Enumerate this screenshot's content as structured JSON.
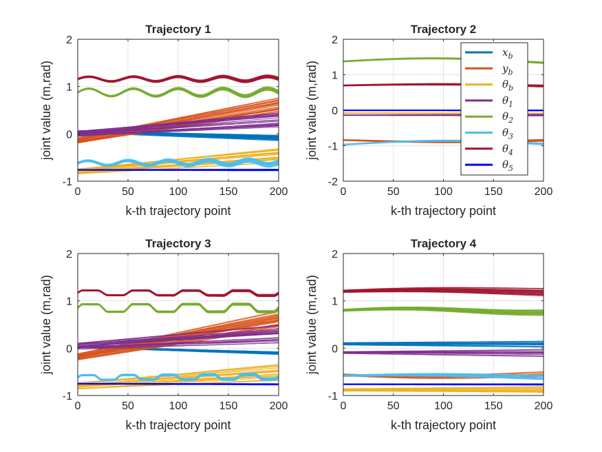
{
  "figure": {
    "background": "#ffffff"
  },
  "chart_data": [
    {
      "type": "line",
      "title": "Trajectory 1",
      "xlabel": "k-th trajectory point",
      "ylabel": "joint value (m,rad)",
      "xlim": [
        0,
        200
      ],
      "ylim": [
        -1,
        2
      ],
      "xticks": [
        0,
        50,
        100,
        150,
        200
      ],
      "yticks": [
        -1,
        0,
        1,
        2
      ],
      "grid": true,
      "series": [
        {
          "color": "#0072BD",
          "bands": [
            {
              "start": 0.05,
              "end": -0.08,
              "count": 18,
              "spread": 0.05,
              "thick": 4
            }
          ]
        },
        {
          "color": "#D95319",
          "bands": [
            {
              "start": -0.15,
              "end": 0.6,
              "count": 30,
              "spread": 0.14,
              "thick": 1
            }
          ]
        },
        {
          "color": "#EDB120",
          "bands": [
            {
              "start": -0.78,
              "end": -0.45,
              "count": 25,
              "spread": 0.15,
              "thick": 1
            }
          ]
        },
        {
          "color": "#7E2F8E",
          "bands": [
            {
              "start": 0.0,
              "end": 0.3,
              "count": 25,
              "spread": 0.15,
              "thick": 1
            }
          ]
        },
        {
          "color": "#77AC30",
          "bands": [
            {
              "start": 0.88,
              "end": 0.88,
              "amp": 0.08,
              "cycles": 4.5,
              "count": 10,
              "spread": 0.03,
              "thick": 4
            }
          ]
        },
        {
          "color": "#4DBEEE",
          "bands": [
            {
              "start": -0.62,
              "end": -0.6,
              "amp": 0.05,
              "cycles": 5,
              "count": 12,
              "spread": 0.04,
              "thick": 4
            }
          ]
        },
        {
          "color": "#A2142F",
          "bands": [
            {
              "start": 1.16,
              "end": 1.16,
              "amp": 0.05,
              "cycles": 4.5,
              "count": 10,
              "spread": 0.03,
              "thick": 4
            }
          ]
        },
        {
          "color": "#0000FF",
          "bands": [
            {
              "start": -0.76,
              "end": -0.76,
              "count": 6,
              "spread": 0.01,
              "thick": 3
            }
          ]
        }
      ]
    },
    {
      "type": "line",
      "title": "Trajectory 2",
      "xlabel": "k-th trajectory point",
      "ylabel": "joint value (m,rad)",
      "xlim": [
        0,
        200
      ],
      "ylim": [
        -2,
        2
      ],
      "xticks": [
        0,
        50,
        100,
        150,
        200
      ],
      "yticks": [
        -2,
        -1,
        0,
        1,
        2
      ],
      "grid": true,
      "legend": {
        "position": "top-right",
        "entries": [
          {
            "label": "x",
            "sub": "b",
            "color": "#0072BD"
          },
          {
            "label": "y",
            "sub": "b",
            "color": "#D95319"
          },
          {
            "label": "θ",
            "sub": "b",
            "color": "#EDB120"
          },
          {
            "label": "θ",
            "sub": "1",
            "color": "#7E2F8E"
          },
          {
            "label": "θ",
            "sub": "2",
            "color": "#77AC30"
          },
          {
            "label": "θ",
            "sub": "3",
            "color": "#4DBEEE"
          },
          {
            "label": "θ",
            "sub": "4",
            "color": "#A2142F"
          },
          {
            "label": "θ",
            "sub": "5",
            "color": "#0000FF"
          }
        ]
      },
      "series": [
        {
          "color": "#EDB120",
          "bands": [
            {
              "start": -0.08,
              "end": -0.1,
              "count": 8,
              "spread": 0.02,
              "thick": 2
            }
          ]
        },
        {
          "color": "#7E2F8E",
          "bands": [
            {
              "start": -0.14,
              "end": -0.14,
              "count": 8,
              "spread": 0.02,
              "thick": 2
            }
          ]
        },
        {
          "color": "#0000FF",
          "bands": [
            {
              "start": 0.0,
              "end": 0.0,
              "count": 4,
              "spread": 0.01,
              "thick": 3
            }
          ]
        },
        {
          "color": "#D95319",
          "bands": [
            {
              "start": -0.84,
              "end": -0.85,
              "amp": -0.05,
              "cycles": 0.5,
              "count": 6,
              "spread": 0.02,
              "thick": 3
            }
          ]
        },
        {
          "color": "#4DBEEE",
          "bands": [
            {
              "start": -0.97,
              "end": -0.95,
              "amp": 0.1,
              "cycles": 0.5,
              "count": 6,
              "spread": 0.02,
              "thick": 3
            }
          ]
        },
        {
          "color": "#A2142F",
          "bands": [
            {
              "start": 0.7,
              "end": 0.69,
              "amp": 0.04,
              "cycles": 0.5,
              "count": 8,
              "spread": 0.02,
              "thick": 4
            }
          ]
        },
        {
          "color": "#77AC30",
          "bands": [
            {
              "start": 1.38,
              "end": 1.37,
              "amp": 0.09,
              "cycles": 0.55,
              "count": 8,
              "spread": 0.02,
              "thick": 4
            }
          ]
        }
      ]
    },
    {
      "type": "line",
      "title": "Trajectory 3",
      "xlabel": "k-th trajectory point",
      "ylabel": "joint value (m,rad)",
      "xlim": [
        0,
        200
      ],
      "ylim": [
        -1,
        2
      ],
      "xticks": [
        0,
        50,
        100,
        150,
        200
      ],
      "yticks": [
        -1,
        0,
        1,
        2
      ],
      "grid": true,
      "series": [
        {
          "color": "#0072BD",
          "bands": [
            {
              "start": 0.03,
              "end": -0.1,
              "count": 10,
              "spread": 0.02,
              "thick": 4
            }
          ]
        },
        {
          "color": "#D95319",
          "bands": [
            {
              "start": -0.18,
              "end": 0.6,
              "count": 28,
              "spread": 0.14,
              "thick": 1
            }
          ]
        },
        {
          "color": "#EDB120",
          "bands": [
            {
              "start": -0.8,
              "end": -0.5,
              "count": 22,
              "spread": 0.15,
              "thick": 1
            }
          ]
        },
        {
          "color": "#7E2F8E",
          "bands": [
            {
              "start": 0.05,
              "end": 0.3,
              "count": 25,
              "spread": 0.15,
              "thick": 1
            }
          ]
        },
        {
          "color": "#77AC30",
          "bands": [
            {
              "start": 0.85,
              "end": 0.85,
              "amp": 0.08,
              "cycles": 4,
              "square": true,
              "count": 8,
              "spread": 0.02,
              "thick": 5
            }
          ]
        },
        {
          "color": "#4DBEEE",
          "bands": [
            {
              "start": -0.62,
              "end": -0.6,
              "amp": 0.05,
              "cycles": 5,
              "square": true,
              "count": 10,
              "spread": 0.03,
              "thick": 5
            }
          ]
        },
        {
          "color": "#A2142F",
          "bands": [
            {
              "start": 1.17,
              "end": 1.16,
              "amp": 0.05,
              "cycles": 4,
              "square": true,
              "count": 8,
              "spread": 0.02,
              "thick": 5
            }
          ]
        },
        {
          "color": "#0000FF",
          "bands": [
            {
              "start": -0.75,
              "end": -0.76,
              "count": 4,
              "spread": 0.01,
              "thick": 3
            }
          ]
        }
      ]
    },
    {
      "type": "line",
      "title": "Trajectory 4",
      "xlabel": "k-th trajectory point",
      "ylabel": "joint value (m,rad)",
      "xlim": [
        0,
        200
      ],
      "ylim": [
        -1,
        2
      ],
      "xticks": [
        0,
        50,
        100,
        150,
        200
      ],
      "yticks": [
        -1,
        0,
        1,
        2
      ],
      "grid": true,
      "series": [
        {
          "color": "#A2142F",
          "bands": [
            {
              "start": 1.2,
              "end": 1.19,
              "amp": 0.03,
              "cycles": 0.6,
              "count": 16,
              "spread": 0.07,
              "thick": 2
            }
          ]
        },
        {
          "color": "#77AC30",
          "bands": [
            {
              "start": 0.8,
              "end": 0.8,
              "amp": 0.04,
              "cycles": 0.8,
              "count": 12,
              "spread": 0.05,
              "thick": 3
            }
          ]
        },
        {
          "color": "#0072BD",
          "bands": [
            {
              "start": 0.09,
              "end": 0.09,
              "count": 14,
              "spread": 0.06,
              "thick": 2
            }
          ]
        },
        {
          "color": "#7E2F8E",
          "bands": [
            {
              "start": -0.09,
              "end": -0.1,
              "count": 14,
              "spread": 0.06,
              "thick": 2
            }
          ]
        },
        {
          "color": "#D95319",
          "bands": [
            {
              "start": -0.56,
              "end": -0.57,
              "amp": -0.04,
              "cycles": 0.6,
              "count": 8,
              "spread": 0.05,
              "thick": 2
            }
          ]
        },
        {
          "color": "#4DBEEE",
          "bands": [
            {
              "start": -0.58,
              "end": -0.6,
              "amp": 0.03,
              "cycles": 0.6,
              "count": 8,
              "spread": 0.04,
              "thick": 3
            }
          ]
        },
        {
          "color": "#0000FF",
          "bands": [
            {
              "start": -0.76,
              "end": -0.76,
              "count": 4,
              "spread": 0.01,
              "thick": 3
            }
          ]
        },
        {
          "color": "#EDB120",
          "bands": [
            {
              "start": -0.88,
              "end": -0.87,
              "count": 16,
              "spread": 0.07,
              "thick": 2
            }
          ]
        }
      ]
    }
  ]
}
